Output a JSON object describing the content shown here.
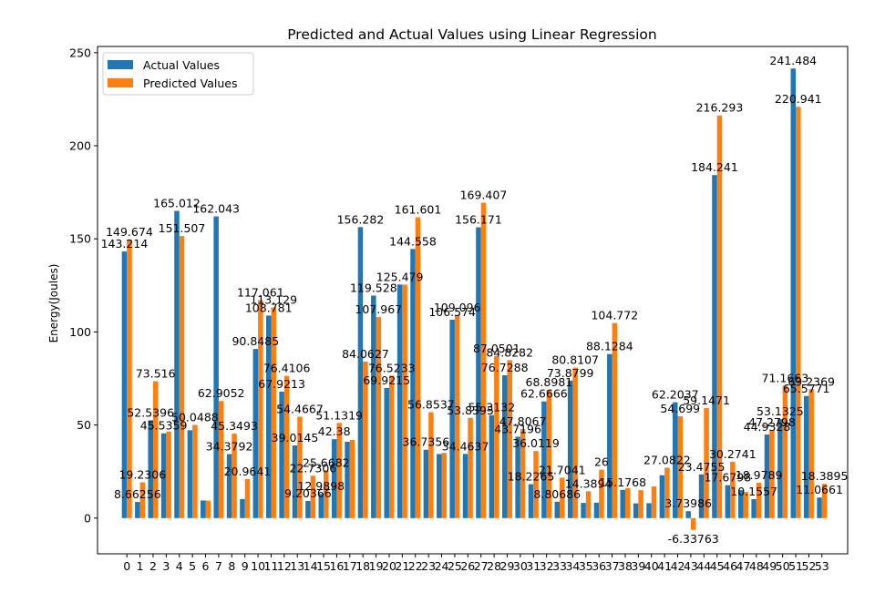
{
  "chart_data": {
    "type": "bar",
    "title": "Predicted and Actual Values using Linear Regression",
    "xlabel": "",
    "ylabel": "Energy(Joules)",
    "ylim": [
      -19.18,
      253.33
    ],
    "yticks": [
      0,
      50,
      100,
      150,
      200,
      250
    ],
    "grid": false,
    "legend_position": "top-left",
    "categories": [
      "0",
      "1",
      "2",
      "3",
      "4",
      "5",
      "6",
      "7",
      "8",
      "9",
      "10",
      "11",
      "12",
      "13",
      "14",
      "15",
      "16",
      "17",
      "18",
      "19",
      "20",
      "21",
      "22",
      "23",
      "24",
      "25",
      "26",
      "27",
      "28",
      "29",
      "30",
      "31",
      "32",
      "33",
      "34",
      "35",
      "36",
      "37",
      "38",
      "39",
      "40",
      "41",
      "42",
      "43",
      "44",
      "45",
      "46",
      "47",
      "48",
      "49",
      "50",
      "51",
      "52",
      "53"
    ],
    "series": [
      {
        "name": "Actual Values",
        "color": "#1f77b4",
        "values": [
          143.214,
          8.66256,
          52.5396,
          45.5359,
          165.012,
          47.2,
          9.45,
          162.043,
          34.3792,
          10.2458,
          90.8485,
          108.781,
          67.9213,
          39.0145,
          9.20366,
          12.9898,
          42.38,
          41.0,
          156.282,
          119.528,
          69.9215,
          125.479,
          144.558,
          36.7356,
          34.4,
          106.574,
          34.4637,
          156.171,
          55.3132,
          76.7288,
          43.7196,
          18.2265,
          62.6666,
          8.80686,
          73.8799,
          8.18,
          8.29,
          88.1284,
          15.1768,
          7.9,
          8.0,
          23.0,
          62.2037,
          3.73986,
          23.4755,
          184.241,
          17.6798,
          15.0,
          10.1557,
          44.9328,
          53.1325,
          241.484,
          65.5771,
          11.0661
        ]
      },
      {
        "name": "Predicted Values",
        "color": "#ff7f0e",
        "values": [
          149.674,
          19.2306,
          73.516,
          46.5,
          151.507,
          50.0488,
          9.4,
          62.9052,
          45.3493,
          20.9641,
          117.061,
          113.129,
          76.4106,
          54.4667,
          22.7306,
          25.6682,
          51.1319,
          42.0,
          84.0627,
          107.967,
          76.5233,
          125.4,
          161.601,
          56.8537,
          35.0,
          109.096,
          53.8395,
          169.407,
          87.0501,
          84.8282,
          47.8067,
          36.0119,
          68.8981,
          21.7041,
          80.8107,
          14.3894,
          26.0,
          104.772,
          16.1,
          15.0,
          17.0,
          27.0822,
          54.699,
          -6.33763,
          59.1471,
          216.293,
          30.2741,
          14.0,
          18.9789,
          47.2798,
          71.1663,
          220.941,
          69.2369,
          18.3895
        ]
      }
    ],
    "data_labels_actual": [
      "143.214",
      "8.66256",
      "52.5396",
      "45.5359",
      "165.012",
      "",
      "",
      "162.043",
      "34.3792",
      "",
      "90.8485",
      "108.781",
      "67.9213",
      "39.0145",
      "9.20366",
      "12.9898",
      "42.38",
      "",
      "156.282",
      "119.528",
      "69.9215",
      "125.479",
      "144.558",
      "36.7356",
      "",
      "106.574",
      "34.4637",
      "156.171",
      "55.3132",
      "76.7288",
      "43.7196",
      "18.2265",
      "62.6666",
      "8.80686",
      "73.8799",
      "",
      "",
      "88.1284",
      "15.1768",
      "",
      "",
      "",
      "62.2037",
      "3.73986",
      "23.4755",
      "184.241",
      "17.6798",
      "",
      "10.1557",
      "44.9328",
      "53.1325",
      "241.484",
      "65.5771",
      "11.0661"
    ],
    "data_labels_predicted": [
      "149.674",
      "19.2306",
      "73.516",
      "",
      "151.507",
      "50.0488",
      "",
      "62.9052",
      "45.3493",
      "20.9641",
      "117.061",
      "113.129",
      "76.4106",
      "54.4667",
      "22.7306",
      "25.6682",
      "51.1319",
      "",
      "84.0627",
      "107.967",
      "76.5233",
      "",
      "161.601",
      "56.8537",
      "",
      "109.096",
      "53.8395",
      "169.407",
      "87.0501",
      "84.8282",
      "47.8067",
      "36.0119",
      "68.8981",
      "21.7041",
      "80.8107",
      "14.3894",
      "26",
      "104.772",
      "",
      "",
      "",
      "27.0822",
      "54.699",
      "-6.33763",
      "59.1471",
      "216.293",
      "30.2741",
      "",
      "18.9789",
      "47.2798",
      "71.1663",
      "220.941",
      "69.2369",
      "18.3895"
    ]
  }
}
